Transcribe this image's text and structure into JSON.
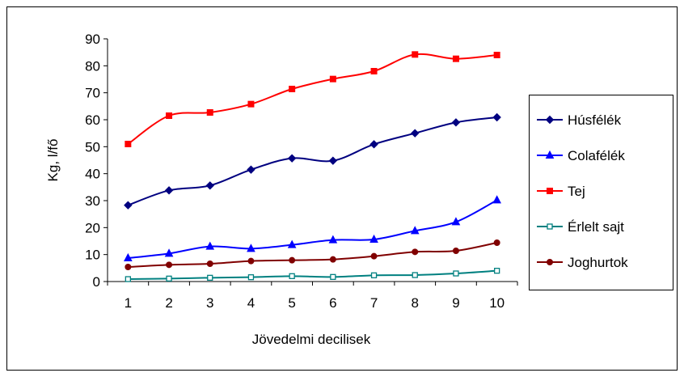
{
  "chart_data": {
    "type": "line",
    "title": "",
    "xlabel": "Jövedelmi decilisek",
    "ylabel": "Kg, l/fő",
    "ylim": [
      0,
      90
    ],
    "yticks": [
      0,
      10,
      20,
      30,
      40,
      50,
      60,
      70,
      80,
      90
    ],
    "categories": [
      "1",
      "2",
      "3",
      "4",
      "5",
      "6",
      "7",
      "8",
      "9",
      "10"
    ],
    "grid": false,
    "legend": "right",
    "series": [
      {
        "name": "Húsfélék",
        "color": "#000080",
        "marker": "diamond",
        "values": [
          28.3,
          33.8,
          35.6,
          41.5,
          45.7,
          44.8,
          50.9,
          55.0,
          59.0,
          60.9
        ]
      },
      {
        "name": "Colafélék",
        "color": "#0000FF",
        "marker": "triangle",
        "values": [
          8.7,
          10.4,
          13.0,
          12.2,
          13.6,
          15.4,
          15.6,
          18.8,
          22.1,
          30.2
        ]
      },
      {
        "name": "Tej",
        "color": "#FF0000",
        "marker": "square",
        "values": [
          51.0,
          61.5,
          62.7,
          65.8,
          71.4,
          75.1,
          78.0,
          84.2,
          82.6,
          84.0
        ]
      },
      {
        "name": "Érlelt sajt",
        "color": "#008080",
        "marker": "square-open",
        "values": [
          0.9,
          1.1,
          1.4,
          1.6,
          2.0,
          1.7,
          2.3,
          2.4,
          3.0,
          4.0
        ]
      },
      {
        "name": "Joghurtok",
        "color": "#800000",
        "marker": "circle",
        "values": [
          5.4,
          6.2,
          6.6,
          7.6,
          7.9,
          8.2,
          9.4,
          11.0,
          11.4,
          14.4
        ]
      }
    ]
  }
}
